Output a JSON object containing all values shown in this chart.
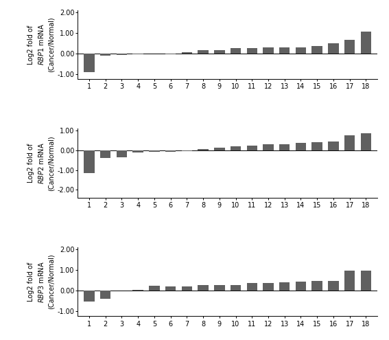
{
  "charts": [
    {
      "rbp_name": "RBP1",
      "ylabel_line1": "Log2 fold of",
      "ylabel_line2": "RBP1 mRNA",
      "ylabel_line3": "(Cancer/Normal)",
      "ylim": [
        -1.25,
        2.1
      ],
      "yticks": [
        -1.0,
        0.0,
        1.0,
        2.0
      ],
      "yticklabels": [
        "-1.00",
        "0.00",
        "1.00",
        "2.00"
      ],
      "vals": [
        -0.9,
        -0.1,
        -0.06,
        -0.03,
        -0.02,
        -0.04,
        0.06,
        0.15,
        0.17,
        0.25,
        0.26,
        0.28,
        0.3,
        0.3,
        0.35,
        0.5,
        0.65,
        1.05
      ],
      "n_bars": 18
    },
    {
      "rbp_name": "RBP2",
      "ylabel_line1": "Log2 fold of",
      "ylabel_line2": "RBP2 mRNA",
      "ylabel_line3": "(Cancer/Normal)",
      "ylim": [
        -2.4,
        1.1
      ],
      "yticks": [
        -2.0,
        -1.0,
        0.0,
        1.0
      ],
      "yticklabels": [
        "-2.00",
        "-1.00",
        "0.00",
        "1.00"
      ],
      "vals": [
        -1.15,
        -0.4,
        -0.35,
        -0.12,
        -0.08,
        -0.06,
        -0.04,
        0.07,
        0.15,
        0.2,
        0.25,
        0.3,
        0.32,
        0.38,
        0.4,
        0.45,
        0.78,
        0.88
      ],
      "n_bars": 18
    },
    {
      "rbp_name": "RBP3",
      "ylabel_line1": "Log2 fold of",
      "ylabel_line2": "RBP3 mRNA",
      "ylabel_line3": "(Cancer/Normal)",
      "ylim": [
        -1.25,
        2.1
      ],
      "yticks": [
        -1.0,
        0.0,
        1.0,
        2.0
      ],
      "yticklabels": [
        "-1.00",
        "0.00",
        "1.00",
        "2.00"
      ],
      "vals": [
        -0.55,
        -0.42,
        0.0,
        0.02,
        0.23,
        0.2,
        0.2,
        0.25,
        0.27,
        0.28,
        0.35,
        0.38,
        0.4,
        0.42,
        0.45,
        0.48,
        0.95,
        0.97
      ],
      "n_bars": 18
    }
  ],
  "bar_color": "#606060",
  "bar_width": 0.65,
  "tick_fontsize": 7,
  "ylabel_fontsize": 7
}
